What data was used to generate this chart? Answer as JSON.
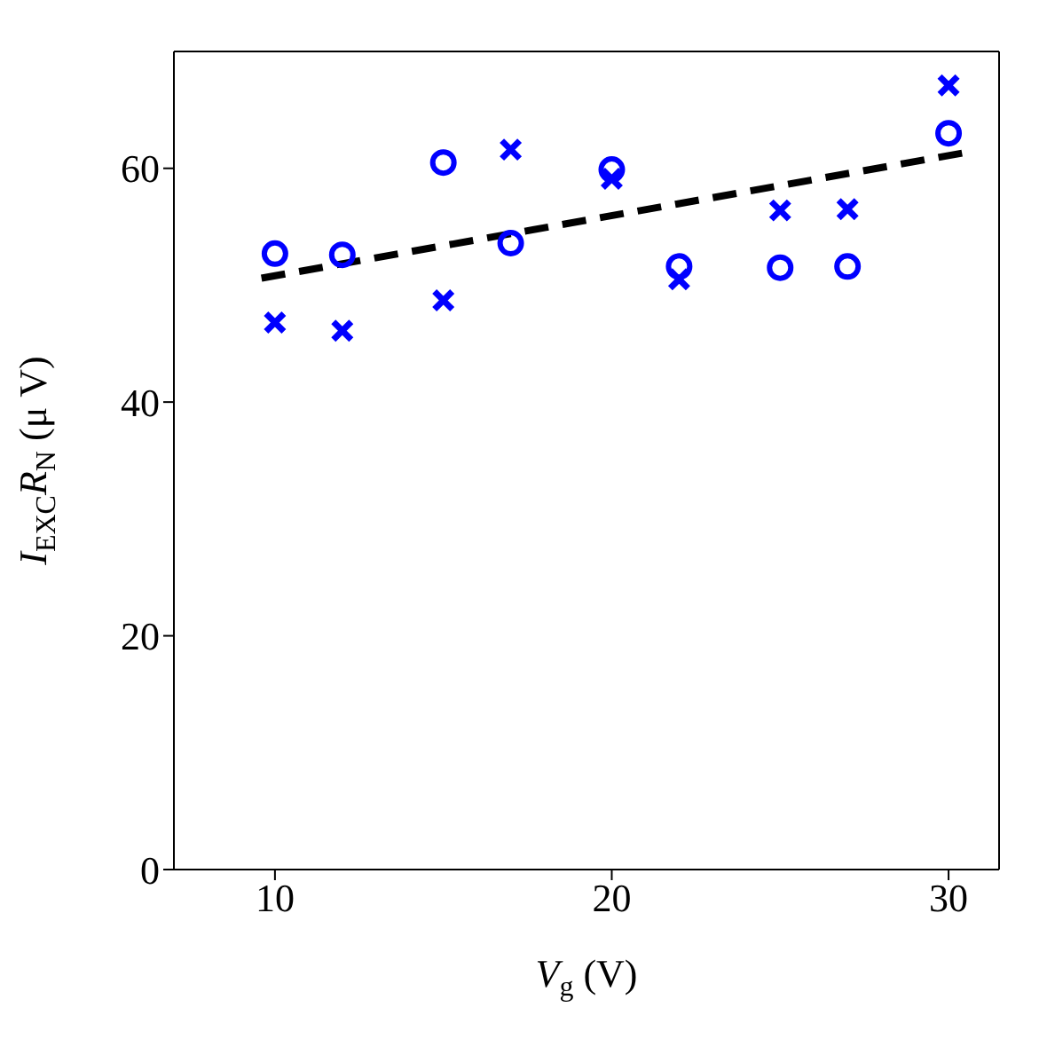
{
  "chart_data": {
    "type": "scatter",
    "xlabel": "V$_{g}$ (V)",
    "ylabel": "I$_{EXC}$R$_{N}$ (μ V)",
    "x": [
      10,
      12,
      15,
      17,
      20,
      22,
      25,
      27,
      30
    ],
    "series": [
      {
        "color": "#0000ff",
        "marker": "circle",
        "values": [
          52.7,
          52.6,
          60.5,
          53.6,
          59.9,
          51.6,
          51.5,
          51.6,
          63.0
        ]
      },
      {
        "color": "#0000ff",
        "marker": "cross",
        "values": [
          46.8,
          46.1,
          48.7,
          61.6,
          59.1,
          50.5,
          56.4,
          56.5,
          67.1
        ]
      },
      {
        "type": "line",
        "color": "#000000",
        "marker": "none",
        "line_style": "dashed",
        "x": [
          9.6,
          30.4
        ],
        "values": [
          50.6,
          61.3
        ]
      }
    ],
    "xlim": [
      7,
      31.5
    ],
    "xticks": [
      10,
      20,
      30
    ],
    "ylim": [
      0,
      70
    ],
    "yticks": [
      0,
      20,
      40,
      60
    ],
    "grid": false,
    "legend": false
  }
}
